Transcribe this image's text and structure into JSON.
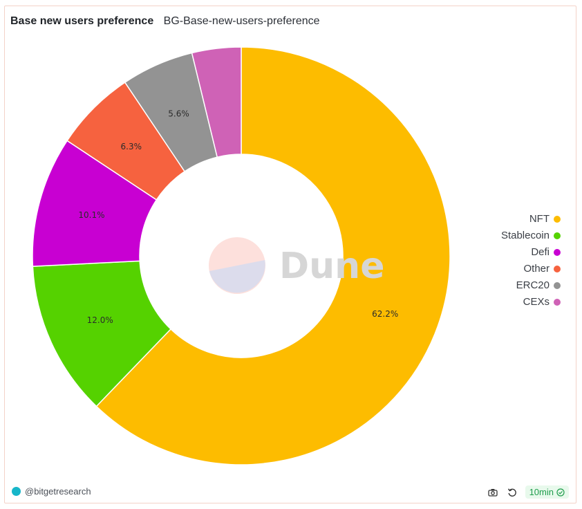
{
  "header": {
    "title": "Base new users preference",
    "subtitle": "BG-Base-new-users-preference"
  },
  "chart_data": {
    "type": "pie",
    "donut": true,
    "categories": [
      "NFT",
      "Stablecoin",
      "Defi",
      "Other",
      "ERC20",
      "CEXs"
    ],
    "values": [
      62.2,
      12.0,
      10.1,
      6.3,
      5.6,
      3.8
    ],
    "labels": [
      "62.2%",
      "12.0%",
      "10.1%",
      "6.3%",
      "5.6%",
      ""
    ],
    "colors": [
      "#fdbc00",
      "#55d200",
      "#c800d2",
      "#f6623f",
      "#939393",
      "#cf62b6"
    ],
    "legend": "right"
  },
  "watermark": {
    "text": "Dune"
  },
  "footer": {
    "author": "@bitgetresearch",
    "refresh": "10min"
  },
  "icons": {
    "camera": "camera-icon",
    "refresh": "refresh-icon",
    "check": "check-circle-icon"
  }
}
